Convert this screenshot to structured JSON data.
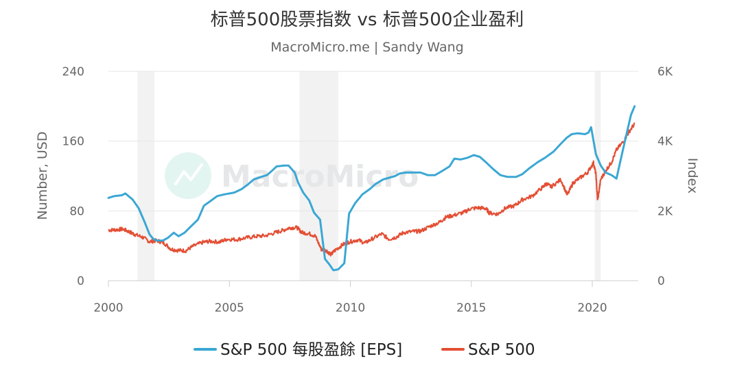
{
  "chart_data": {
    "type": "line",
    "title": "标普500股票指数 vs 标普500企业盈利",
    "subtitle": "MacroMicro.me | Sandy Wang",
    "watermark": "MacroMicro",
    "xlim": [
      2000,
      2021.9
    ],
    "x_ticks": [
      2000,
      2005,
      2010,
      2015,
      2020
    ],
    "y_left": {
      "label": "Number, USD",
      "range": [
        0,
        240
      ],
      "ticks": [
        "0",
        "80",
        "160",
        "240"
      ]
    },
    "y_right": {
      "label": "Index",
      "range": [
        0,
        6000
      ],
      "ticks": [
        "0",
        "2K",
        "4K",
        "6K"
      ]
    },
    "recessions": [
      [
        2001.2,
        2001.9
      ],
      [
        2007.9,
        2009.5
      ],
      [
        2020.1,
        2020.35
      ]
    ],
    "series": [
      {
        "name": "S&P 500 每股盈餘 [EPS]",
        "axis": "left",
        "color": "#3aa7d4",
        "points": [
          [
            2000.0,
            95
          ],
          [
            2000.25,
            97
          ],
          [
            2000.55,
            98
          ],
          [
            2000.7,
            100
          ],
          [
            2001.0,
            93
          ],
          [
            2001.25,
            83
          ],
          [
            2001.5,
            67
          ],
          [
            2001.7,
            53
          ],
          [
            2001.85,
            48
          ],
          [
            2002.0,
            46
          ],
          [
            2002.25,
            46
          ],
          [
            2002.45,
            49
          ],
          [
            2002.7,
            55
          ],
          [
            2002.9,
            51
          ],
          [
            2003.15,
            55
          ],
          [
            2003.4,
            62
          ],
          [
            2003.7,
            70
          ],
          [
            2003.95,
            86
          ],
          [
            2004.2,
            91
          ],
          [
            2004.5,
            97
          ],
          [
            2004.8,
            99
          ],
          [
            2005.2,
            101
          ],
          [
            2005.5,
            105
          ],
          [
            2005.75,
            110
          ],
          [
            2006.0,
            116
          ],
          [
            2006.3,
            119
          ],
          [
            2006.55,
            121
          ],
          [
            2006.8,
            127
          ],
          [
            2006.95,
            131
          ],
          [
            2007.25,
            132
          ],
          [
            2007.45,
            132
          ],
          [
            2007.7,
            124
          ],
          [
            2007.85,
            112
          ],
          [
            2008.05,
            101
          ],
          [
            2008.3,
            92
          ],
          [
            2008.5,
            78
          ],
          [
            2008.75,
            70
          ],
          [
            2008.85,
            47
          ],
          [
            2008.95,
            25
          ],
          [
            2009.15,
            18
          ],
          [
            2009.3,
            12
          ],
          [
            2009.5,
            13
          ],
          [
            2009.75,
            20
          ],
          [
            2009.95,
            77
          ],
          [
            2010.2,
            89
          ],
          [
            2010.5,
            99
          ],
          [
            2010.8,
            105
          ],
          [
            2011.05,
            111
          ],
          [
            2011.35,
            116
          ],
          [
            2011.6,
            118
          ],
          [
            2011.85,
            120
          ],
          [
            2012.05,
            123
          ],
          [
            2012.3,
            124
          ],
          [
            2012.6,
            124
          ],
          [
            2012.9,
            124
          ],
          [
            2013.2,
            121
          ],
          [
            2013.5,
            121
          ],
          [
            2013.75,
            125
          ],
          [
            2014.1,
            131
          ],
          [
            2014.3,
            140
          ],
          [
            2014.55,
            139
          ],
          [
            2014.85,
            141
          ],
          [
            2015.1,
            144
          ],
          [
            2015.35,
            142
          ],
          [
            2015.6,
            136
          ],
          [
            2015.9,
            128
          ],
          [
            2016.2,
            121
          ],
          [
            2016.5,
            119
          ],
          [
            2016.85,
            119
          ],
          [
            2017.1,
            122
          ],
          [
            2017.4,
            129
          ],
          [
            2017.75,
            136
          ],
          [
            2018.05,
            141
          ],
          [
            2018.4,
            148
          ],
          [
            2018.7,
            157
          ],
          [
            2018.95,
            164
          ],
          [
            2019.15,
            168
          ],
          [
            2019.4,
            169
          ],
          [
            2019.7,
            168
          ],
          [
            2019.85,
            170
          ],
          [
            2019.95,
            176
          ],
          [
            2020.15,
            145
          ],
          [
            2020.35,
            132
          ],
          [
            2020.55,
            124
          ],
          [
            2020.8,
            121
          ],
          [
            2021.0,
            117
          ],
          [
            2021.25,
            148
          ],
          [
            2021.45,
            172
          ],
          [
            2021.6,
            190
          ],
          [
            2021.75,
            200
          ]
        ]
      },
      {
        "name": "S&P 500",
        "axis": "right",
        "color": "#e34f35",
        "points": [
          [
            2000.0,
            1450
          ],
          [
            2000.3,
            1460
          ],
          [
            2000.6,
            1480
          ],
          [
            2000.9,
            1390
          ],
          [
            2001.1,
            1320
          ],
          [
            2001.4,
            1250
          ],
          [
            2001.7,
            1120
          ],
          [
            2002.0,
            1150
          ],
          [
            2002.3,
            1080
          ],
          [
            2002.6,
            900
          ],
          [
            2002.9,
            870
          ],
          [
            2003.2,
            860
          ],
          [
            2003.5,
            990
          ],
          [
            2003.9,
            1100
          ],
          [
            2004.2,
            1130
          ],
          [
            2004.6,
            1110
          ],
          [
            2004.9,
            1190
          ],
          [
            2005.3,
            1180
          ],
          [
            2005.7,
            1230
          ],
          [
            2006.1,
            1270
          ],
          [
            2006.5,
            1290
          ],
          [
            2006.9,
            1380
          ],
          [
            2007.2,
            1440
          ],
          [
            2007.5,
            1520
          ],
          [
            2007.8,
            1520
          ],
          [
            2008.0,
            1380
          ],
          [
            2008.3,
            1350
          ],
          [
            2008.55,
            1280
          ],
          [
            2008.8,
            900
          ],
          [
            2009.0,
            870
          ],
          [
            2009.2,
            750
          ],
          [
            2009.4,
            890
          ],
          [
            2009.7,
            1040
          ],
          [
            2009.95,
            1110
          ],
          [
            2010.3,
            1170
          ],
          [
            2010.6,
            1080
          ],
          [
            2010.9,
            1200
          ],
          [
            2011.3,
            1340
          ],
          [
            2011.6,
            1190
          ],
          [
            2011.9,
            1250
          ],
          [
            2012.2,
            1380
          ],
          [
            2012.6,
            1410
          ],
          [
            2012.9,
            1420
          ],
          [
            2013.3,
            1560
          ],
          [
            2013.7,
            1680
          ],
          [
            2013.95,
            1820
          ],
          [
            2014.3,
            1880
          ],
          [
            2014.7,
            1960
          ],
          [
            2014.95,
            2060
          ],
          [
            2015.3,
            2090
          ],
          [
            2015.6,
            2070
          ],
          [
            2015.75,
            1940
          ],
          [
            2016.1,
            1910
          ],
          [
            2016.4,
            2080
          ],
          [
            2016.8,
            2150
          ],
          [
            2017.1,
            2320
          ],
          [
            2017.5,
            2420
          ],
          [
            2017.9,
            2650
          ],
          [
            2018.1,
            2780
          ],
          [
            2018.3,
            2690
          ],
          [
            2018.7,
            2900
          ],
          [
            2018.97,
            2450
          ],
          [
            2019.2,
            2800
          ],
          [
            2019.5,
            2950
          ],
          [
            2019.8,
            3100
          ],
          [
            2020.05,
            3380
          ],
          [
            2020.15,
            3050
          ],
          [
            2020.22,
            2300
          ],
          [
            2020.35,
            2900
          ],
          [
            2020.55,
            3150
          ],
          [
            2020.8,
            3400
          ],
          [
            2021.0,
            3750
          ],
          [
            2021.3,
            4000
          ],
          [
            2021.5,
            4250
          ],
          [
            2021.75,
            4500
          ]
        ]
      }
    ]
  }
}
